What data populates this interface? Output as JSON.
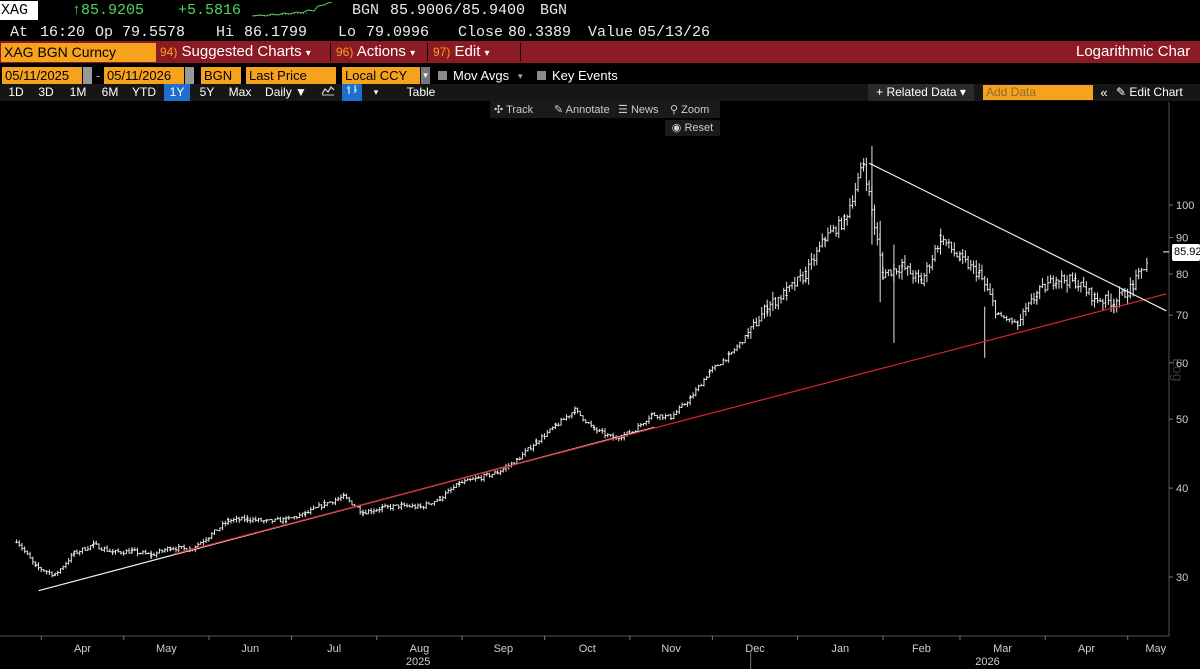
{
  "quote": {
    "ticker": "XAG",
    "last": "↑85.9205",
    "change": "+5.5816",
    "source": "BGN",
    "bid_ask": "85.9006/85.9400",
    "source2": "BGN",
    "at_label": "At",
    "at_value": "16:20",
    "op_label": "Op",
    "op_value": "79.5578",
    "hi_label": "Hi",
    "hi_value": "86.1799",
    "lo_label": "Lo",
    "lo_value": "79.0996",
    "close_label": "Close",
    "close_value": "80.3389",
    "value_label": "Value",
    "value_date": "05/13/26"
  },
  "menubar": {
    "security": "XAG BGN Curncy",
    "suggested_num": "94)",
    "suggested": "Suggested Charts",
    "actions_num": "96)",
    "actions": "Actions",
    "edit_num": "97)",
    "edit": "Edit",
    "right_title": "Logarithmic Char"
  },
  "controls": {
    "start_date": "05/11/2025",
    "end_date": "05/11/2026",
    "source": "BGN",
    "field": "Last Price",
    "currency": "Local CCY",
    "mov_avgs": "Mov Avgs",
    "key_events": "Key Events"
  },
  "periods": [
    "1D",
    "3D",
    "1M",
    "6M",
    "YTD",
    "1Y",
    "5Y",
    "Max"
  ],
  "selected_period": "1Y",
  "frequency": "Daily ▼",
  "table_label": "Table",
  "related_data": "+ Related Data ▾",
  "add_data_placeholder": "Add Data",
  "edit_chart": "Edit Chart",
  "toolbar": {
    "track": "Track",
    "annotate": "Annotate",
    "news": "News",
    "zoom": "Zoom",
    "reset": "Reset"
  },
  "colors": {
    "accent": "#f7a21c",
    "menubar": "#8b1a22",
    "up": "#4cd75a",
    "trendline_red": "#d8262e",
    "trendline_white": "#ffffff"
  },
  "chart_data": {
    "type": "bar",
    "subtype": "ohlc",
    "scale": "log",
    "ylabel": "Log",
    "ylim": [
      26,
      120
    ],
    "y_ticks": [
      30,
      40,
      50,
      60,
      70,
      80,
      90,
      100
    ],
    "last_price_label": "85.92",
    "x_month_ticks": [
      "Apr",
      "May",
      "Jun",
      "Jul",
      "Aug",
      "Sep",
      "Oct",
      "Nov",
      "Dec",
      "Jan",
      "Feb",
      "Mar",
      "Apr",
      "May"
    ],
    "x_year_labels": [
      "2025",
      "2026"
    ],
    "weekly_closes": [
      [
        "2025-03-23",
        33.8
      ],
      [
        "2025-03-30",
        31.0
      ],
      [
        "2025-04-06",
        30.2
      ],
      [
        "2025-04-13",
        32.4
      ],
      [
        "2025-04-20",
        33.3
      ],
      [
        "2025-04-27",
        32.5
      ],
      [
        "2025-05-04",
        32.6
      ],
      [
        "2025-05-11",
        32.2
      ],
      [
        "2025-05-18",
        33.0
      ],
      [
        "2025-05-25",
        32.8
      ],
      [
        "2025-06-01",
        34.2
      ],
      [
        "2025-06-08",
        36.0
      ],
      [
        "2025-06-15",
        36.2
      ],
      [
        "2025-06-22",
        35.9
      ],
      [
        "2025-06-29",
        36.1
      ],
      [
        "2025-07-06",
        36.8
      ],
      [
        "2025-07-13",
        38.0
      ],
      [
        "2025-07-20",
        38.9
      ],
      [
        "2025-07-27",
        37.0
      ],
      [
        "2025-08-03",
        37.5
      ],
      [
        "2025-08-10",
        37.8
      ],
      [
        "2025-08-17",
        37.6
      ],
      [
        "2025-08-24",
        38.7
      ],
      [
        "2025-08-31",
        40.6
      ],
      [
        "2025-09-07",
        41.3
      ],
      [
        "2025-09-14",
        42.1
      ],
      [
        "2025-09-21",
        43.8
      ],
      [
        "2025-09-28",
        46.5
      ],
      [
        "2025-10-05",
        48.9
      ],
      [
        "2025-10-12",
        51.5
      ],
      [
        "2025-10-19",
        48.4
      ],
      [
        "2025-10-26",
        47.0
      ],
      [
        "2025-11-02",
        48.0
      ],
      [
        "2025-11-09",
        50.8
      ],
      [
        "2025-11-16",
        50.3
      ],
      [
        "2025-11-23",
        53.5
      ],
      [
        "2025-11-30",
        58.3
      ],
      [
        "2025-12-07",
        61.4
      ],
      [
        "2025-12-14",
        65.8
      ],
      [
        "2025-12-21",
        72.0
      ],
      [
        "2025-12-28",
        75.5
      ],
      [
        "2026-01-04",
        80.0
      ],
      [
        "2026-01-11",
        90.0
      ],
      [
        "2026-01-18",
        95.0
      ],
      [
        "2026-01-25",
        114.5
      ],
      [
        "2026-02-01",
        80.0
      ],
      [
        "2026-02-08",
        82.0
      ],
      [
        "2026-02-15",
        78.0
      ],
      [
        "2026-02-22",
        90.0
      ],
      [
        "2026-03-01",
        84.0
      ],
      [
        "2026-03-08",
        80.0
      ],
      [
        "2026-03-15",
        70.0
      ],
      [
        "2026-03-22",
        68.0
      ],
      [
        "2026-03-29",
        75.0
      ],
      [
        "2026-04-05",
        79.0
      ],
      [
        "2026-04-12",
        78.0
      ],
      [
        "2026-04-19",
        74.0
      ],
      [
        "2026-04-26",
        73.0
      ],
      [
        "2026-05-03",
        77.0
      ],
      [
        "2026-05-10",
        85.92
      ]
    ],
    "trendlines": [
      {
        "color": "white",
        "from": [
          "2025-03-31",
          28.7
        ],
        "to": [
          "2025-11-10",
          48.7
        ]
      },
      {
        "color": "red",
        "from": [
          "2025-05-19",
          32.3
        ],
        "to": [
          "2026-05-15",
          75.0
        ]
      },
      {
        "color": "white",
        "from": [
          "2026-01-27",
          114.5
        ],
        "to": [
          "2026-05-15",
          71.0
        ]
      }
    ]
  }
}
